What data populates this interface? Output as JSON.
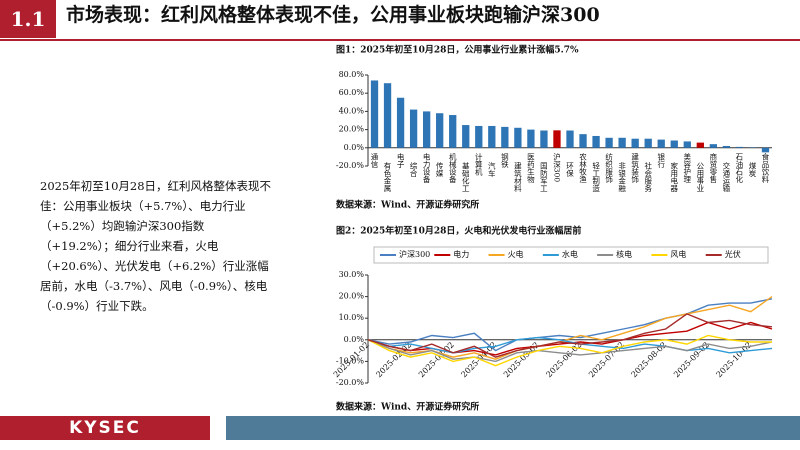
{
  "header": {
    "number": "1.1",
    "title": "市场表现：红利风格整体表现不佳，公用事业板块跑输沪深300"
  },
  "summary": "2025年初至10月28日，红利风格整体表现不佳：公用事业板块（+5.7%）、电力行业（+5.2%）均跑输沪深300指数（+19.2%）；细分行业来看，火电（+20.6%）、光伏发电（+6.2%）行业涨幅居前，水电（-3.7%）、风电（-0.9%）、核电（-0.9%）行业下跌。",
  "footer": {
    "logo": "KYSEC"
  },
  "chart_data": [
    {
      "type": "bar",
      "title": "图1：2025年初至10月28日，公用事业行业累计涨幅5.7%",
      "source": "数据来源：Wind、开源证券研究所",
      "categories": [
        "通信",
        "有色金属",
        "电子",
        "综合",
        "电力设备",
        "传媒",
        "机械设备",
        "基础化工",
        "计算机",
        "汽车",
        "钢铁",
        "建筑材料",
        "医药生物",
        "国防军工",
        "沪深300",
        "环保",
        "农林牧渔",
        "轻工制造",
        "纺织服饰",
        "非银金融",
        "建筑装饰",
        "社会服务",
        "银行",
        "家用电器",
        "美容护理",
        "公用事业",
        "商贸零售",
        "交通运输",
        "石油石化",
        "煤炭",
        "食品饮料"
      ],
      "values": [
        74,
        71,
        55,
        42,
        40,
        38,
        36,
        25,
        24,
        24,
        23,
        22,
        20,
        19,
        19.2,
        19,
        15,
        13,
        11,
        11,
        10,
        10,
        9,
        8,
        7,
        5.7,
        4,
        2,
        1,
        0.5,
        -5
      ],
      "colors": [
        "#2e75b6",
        "#2e75b6",
        "#2e75b6",
        "#2e75b6",
        "#2e75b6",
        "#2e75b6",
        "#2e75b6",
        "#2e75b6",
        "#2e75b6",
        "#2e75b6",
        "#2e75b6",
        "#2e75b6",
        "#2e75b6",
        "#2e75b6",
        "#c00000",
        "#2e75b6",
        "#2e75b6",
        "#2e75b6",
        "#2e75b6",
        "#2e75b6",
        "#2e75b6",
        "#2e75b6",
        "#2e75b6",
        "#2e75b6",
        "#2e75b6",
        "#c00000",
        "#2e75b6",
        "#2e75b6",
        "#2e75b6",
        "#2e75b6",
        "#2e75b6"
      ],
      "ylim": [
        -20,
        80
      ],
      "yticks": [
        {
          "value": -20,
          "label": "-20.0%"
        },
        {
          "value": 0,
          "label": "0.0%"
        },
        {
          "value": 20,
          "label": "20.0%"
        },
        {
          "value": 40,
          "label": "40.0%"
        },
        {
          "value": 60,
          "label": "60.0%"
        },
        {
          "value": 80,
          "label": "80.0%"
        }
      ]
    },
    {
      "type": "line",
      "title": "图2：2025年初至10月28日，火电和光伏发电行业涨幅居前",
      "source": "数据来源：Wind、开源证券研究所",
      "categories": [
        "2025-01-02",
        null,
        "2025-02-02",
        null,
        "2025-03-02",
        null,
        "2025-04-02",
        null,
        "2025-05-02",
        null,
        "2025-06-02",
        null,
        "2025-07-02",
        null,
        "2025-08-02",
        null,
        "2025-09-02",
        null,
        "2025-10-02",
        null
      ],
      "series": [
        {
          "name": "沪深300",
          "color": "#4a7fc1",
          "values": [
            0,
            -2,
            -1,
            2,
            1,
            3,
            -5,
            0,
            1,
            2,
            1,
            3,
            5,
            7,
            10,
            12,
            16,
            17,
            17,
            19
          ]
        },
        {
          "name": "电力",
          "color": "#c00000",
          "values": [
            0,
            -3,
            -5,
            -4,
            -6,
            -5,
            -7,
            -4,
            -3,
            -2,
            -1,
            -2,
            0,
            2,
            3,
            4,
            8,
            5,
            8,
            5
          ]
        },
        {
          "name": "火电",
          "color": "#f5a623",
          "values": [
            0,
            -4,
            -6,
            -5,
            -8,
            -6,
            -9,
            -5,
            -3,
            -1,
            2,
            0,
            3,
            6,
            10,
            12,
            14,
            16,
            13,
            20
          ]
        },
        {
          "name": "水电",
          "color": "#2e9bd6",
          "values": [
            0,
            -3,
            -2,
            -4,
            -6,
            -4,
            -3,
            0,
            1,
            0,
            -2,
            -3,
            -4,
            -2,
            -3,
            -5,
            -4,
            -6,
            -5,
            -4
          ]
        },
        {
          "name": "核电",
          "color": "#8c8c8c",
          "values": [
            0,
            -4,
            -7,
            -5,
            -9,
            -8,
            -10,
            -6,
            -5,
            -6,
            -7,
            -6,
            -5,
            -4,
            -3,
            -5,
            -2,
            -4,
            -3,
            -1
          ]
        },
        {
          "name": "风电",
          "color": "#ffd700",
          "values": [
            0,
            -5,
            -8,
            -6,
            -10,
            -8,
            -12,
            -8,
            -5,
            -3,
            -4,
            -6,
            -3,
            -1,
            0,
            -2,
            2,
            0,
            -1,
            -1
          ]
        },
        {
          "name": "光伏",
          "color": "#a52a2a",
          "values": [
            0,
            -3,
            -5,
            -2,
            -6,
            -3,
            -8,
            -5,
            -3,
            -1,
            -2,
            -1,
            0,
            3,
            5,
            12,
            8,
            9,
            7,
            6
          ]
        }
      ],
      "ylim": [
        -20,
        30
      ],
      "yticks": [
        {
          "value": -20,
          "label": "-20.0%"
        },
        {
          "value": -10,
          "label": "-10.0%"
        },
        {
          "value": 0,
          "label": "0.0%"
        },
        {
          "value": 10,
          "label": "10.0%"
        },
        {
          "value": 20,
          "label": "20.0%"
        },
        {
          "value": 30,
          "label": "30.0%"
        }
      ]
    }
  ]
}
